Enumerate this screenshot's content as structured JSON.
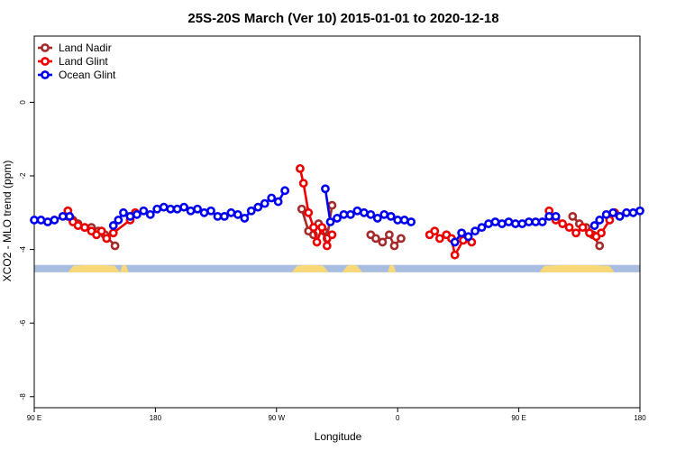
{
  "chart_data": {
    "type": "line",
    "title": "25S-20S March (Ver 10)   2015-01-01 to 2020-12-18",
    "xlabel": "Longitude",
    "ylabel": "XCO2 - MLO trend (ppm)",
    "xlim": [
      90,
      450
    ],
    "ylim": [
      -8.3,
      1.8
    ],
    "x_ticks": [
      {
        "value": 90,
        "label": "90 E"
      },
      {
        "value": 162,
        "label": "180"
      },
      {
        "value": 234,
        "label": "90 W"
      },
      {
        "value": 306,
        "label": "0"
      },
      {
        "value": 378,
        "label": "90 E"
      },
      {
        "value": 450,
        "label": "180"
      }
    ],
    "y_ticks": [
      {
        "value": 0,
        "label": "0"
      },
      {
        "value": -2,
        "label": "-2"
      },
      {
        "value": -4,
        "label": "-4"
      },
      {
        "value": -6,
        "label": "-6"
      },
      {
        "value": -8,
        "label": "-8"
      }
    ],
    "grid": false,
    "legend_position": "top-left",
    "land_strip": {
      "y_range": [
        -4.62,
        -4.42
      ],
      "ocean_color": "#a8bddf",
      "land_color": "#f9d977",
      "land_segments": [
        [
          110,
          141
        ],
        [
          141,
          146
        ],
        [
          243,
          265
        ],
        [
          273,
          285
        ],
        [
          300,
          305
        ],
        [
          390,
          435
        ]
      ]
    },
    "series": [
      {
        "name": "Land Nadir",
        "color": "#a52a2a",
        "segments": [
          [
            [
              110,
              -3.1
            ],
            [
              113,
              -3.2
            ],
            [
              116,
              -3.3
            ],
            [
              120,
              -3.4
            ],
            [
              124,
              -3.4
            ],
            [
              128,
              -3.5
            ],
            [
              132,
              -3.6
            ],
            [
              138,
              -3.9
            ]
          ],
          [
            [
              249,
              -2.9
            ],
            [
              253,
              -3.5
            ],
            [
              256,
              -3.6
            ],
            [
              259,
              -3.3
            ],
            [
              262,
              -3.5
            ],
            [
              264,
              -3.7
            ],
            [
              267,
              -2.8
            ]
          ],
          [
            [
              290,
              -3.6
            ],
            [
              293,
              -3.7
            ],
            [
              297,
              -3.8
            ],
            [
              301,
              -3.6
            ],
            [
              304,
              -3.9
            ],
            [
              308,
              -3.7
            ]
          ],
          [
            [
              410,
              -3.1
            ],
            [
              414,
              -3.3
            ],
            [
              418,
              -3.4
            ],
            [
              422,
              -3.6
            ],
            [
              426,
              -3.9
            ]
          ]
        ]
      },
      {
        "name": "Land Glint",
        "color": "#ee0000",
        "segments": [
          [
            [
              110,
              -2.95
            ],
            [
              113,
              -3.25
            ],
            [
              116,
              -3.35
            ],
            [
              120,
              -3.4
            ],
            [
              124,
              -3.5
            ],
            [
              127,
              -3.6
            ],
            [
              130,
              -3.5
            ],
            [
              133,
              -3.7
            ],
            [
              137,
              -3.55
            ],
            [
              147,
              -3.2
            ],
            [
              150,
              -3.0
            ]
          ],
          [
            [
              248,
              -1.8
            ],
            [
              250,
              -2.2
            ],
            [
              253,
              -3.0
            ],
            [
              256,
              -3.4
            ],
            [
              258,
              -3.8
            ],
            [
              261,
              -3.4
            ],
            [
              264,
              -3.9
            ],
            [
              267,
              -3.6
            ]
          ],
          [
            [
              325,
              -3.6
            ],
            [
              328,
              -3.5
            ],
            [
              331,
              -3.7
            ],
            [
              335,
              -3.6
            ],
            [
              338,
              -3.7
            ],
            [
              340,
              -4.15
            ],
            [
              345,
              -3.75
            ],
            [
              350,
              -3.8
            ]
          ],
          [
            [
              396,
              -2.95
            ],
            [
              400,
              -3.2
            ],
            [
              404,
              -3.3
            ],
            [
              408,
              -3.4
            ],
            [
              412,
              -3.55
            ],
            [
              416,
              -3.4
            ],
            [
              420,
              -3.55
            ],
            [
              424,
              -3.65
            ],
            [
              427,
              -3.55
            ],
            [
              432,
              -3.2
            ],
            [
              435,
              -3.0
            ]
          ]
        ]
      },
      {
        "name": "Ocean Glint",
        "color": "#0000ee",
        "segments": [
          [
            [
              90,
              -3.2
            ],
            [
              94,
              -3.2
            ],
            [
              98,
              -3.25
            ],
            [
              102,
              -3.2
            ],
            [
              107,
              -3.1
            ],
            [
              111,
              -3.1
            ]
          ],
          [
            [
              137,
              -3.35
            ],
            [
              140,
              -3.2
            ],
            [
              143,
              -3.0
            ],
            [
              147,
              -3.1
            ],
            [
              151,
              -3.05
            ],
            [
              155,
              -2.95
            ],
            [
              159,
              -3.05
            ],
            [
              163,
              -2.9
            ],
            [
              167,
              -2.85
            ],
            [
              171,
              -2.9
            ],
            [
              175,
              -2.9
            ],
            [
              179,
              -2.85
            ],
            [
              183,
              -2.95
            ],
            [
              187,
              -2.9
            ],
            [
              191,
              -3.0
            ],
            [
              195,
              -2.95
            ],
            [
              199,
              -3.1
            ],
            [
              203,
              -3.1
            ],
            [
              207,
              -3.0
            ],
            [
              211,
              -3.05
            ],
            [
              215,
              -3.15
            ],
            [
              219,
              -2.95
            ],
            [
              223,
              -2.85
            ],
            [
              227,
              -2.75
            ],
            [
              231,
              -2.6
            ],
            [
              235,
              -2.7
            ],
            [
              239,
              -2.4
            ]
          ],
          [
            [
              263,
              -2.35
            ],
            [
              266,
              -3.25
            ],
            [
              270,
              -3.15
            ],
            [
              274,
              -3.05
            ],
            [
              278,
              -3.05
            ],
            [
              282,
              -2.95
            ],
            [
              286,
              -3.0
            ],
            [
              290,
              -3.05
            ],
            [
              294,
              -3.15
            ],
            [
              298,
              -3.05
            ],
            [
              302,
              -3.1
            ],
            [
              306,
              -3.2
            ],
            [
              310,
              -3.2
            ],
            [
              314,
              -3.25
            ]
          ],
          [
            [
              340,
              -3.8
            ],
            [
              344,
              -3.55
            ],
            [
              348,
              -3.65
            ],
            [
              352,
              -3.5
            ],
            [
              356,
              -3.4
            ],
            [
              360,
              -3.3
            ],
            [
              364,
              -3.25
            ],
            [
              368,
              -3.3
            ],
            [
              372,
              -3.25
            ],
            [
              376,
              -3.3
            ],
            [
              380,
              -3.3
            ],
            [
              384,
              -3.25
            ],
            [
              388,
              -3.25
            ],
            [
              392,
              -3.25
            ],
            [
              396,
              -3.1
            ],
            [
              400,
              -3.1
            ]
          ],
          [
            [
              423,
              -3.35
            ],
            [
              426,
              -3.2
            ],
            [
              430,
              -3.05
            ],
            [
              434,
              -3.0
            ],
            [
              438,
              -3.1
            ],
            [
              442,
              -3.0
            ],
            [
              446,
              -3.0
            ],
            [
              450,
              -2.95
            ]
          ]
        ]
      }
    ]
  }
}
